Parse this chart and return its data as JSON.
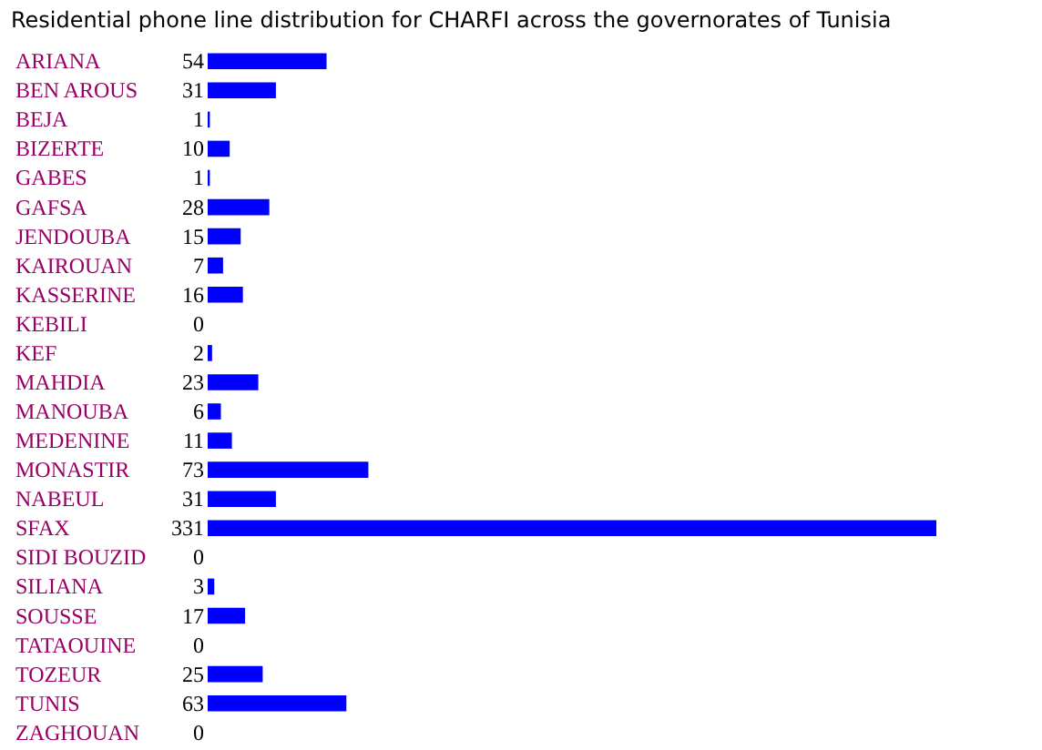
{
  "chart_data": {
    "type": "bar",
    "orientation": "horizontal",
    "title": "Residential phone line distribution for CHARFI across the governorates of Tunisia",
    "categories": [
      "ARIANA",
      "BEN AROUS",
      "BEJA",
      "BIZERTE",
      "GABES",
      "GAFSA",
      "JENDOUBA",
      "KAIROUAN",
      "KASSERINE",
      "KEBILI",
      "KEF",
      "MAHDIA",
      "MANOUBA",
      "MEDENINE",
      "MONASTIR",
      "NABEUL",
      "SFAX",
      "SIDI BOUZID",
      "SILIANA",
      "SOUSSE",
      "TATAOUINE",
      "TOZEUR",
      "TUNIS",
      "ZAGHOUAN"
    ],
    "values": [
      54,
      31,
      1,
      10,
      1,
      28,
      15,
      7,
      16,
      0,
      2,
      23,
      6,
      11,
      73,
      31,
      331,
      0,
      3,
      17,
      0,
      25,
      63,
      0
    ],
    "color": "#0000ff",
    "data_labels": true
  }
}
